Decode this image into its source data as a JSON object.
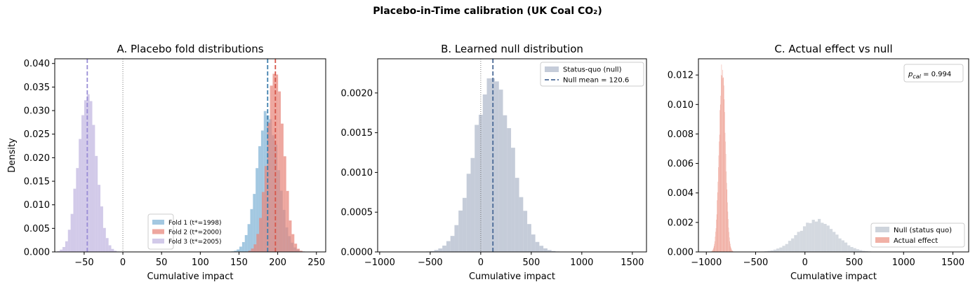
{
  "suptitle": "Placebo-in-Time calibration (UK Coal CO₂)",
  "chart_data": [
    {
      "type": "histogram",
      "title": "A. Placebo fold distributions",
      "xlabel": "Cumulative impact",
      "ylabel": "Density",
      "xlim": [
        -88,
        262
      ],
      "ylim": [
        0,
        0.041
      ],
      "xticks": [
        -50,
        0,
        50,
        100,
        150,
        200,
        250
      ],
      "yticks": [
        "0.000",
        "0.005",
        "0.010",
        "0.015",
        "0.020",
        "0.025",
        "0.030",
        "0.035",
        "0.040"
      ],
      "zero_line": 0,
      "legend_position": "lower-right",
      "series": [
        {
          "name": "Fold 1 (t*=1998)",
          "color": "#7fb3d5",
          "mean": 187,
          "sd": 13.5,
          "vline": 187,
          "vline_color": "#3f7fad"
        },
        {
          "name": "Fold 2 (t*=2000)",
          "color": "#e8857a",
          "mean": 197,
          "sd": 10.5,
          "vline": 197,
          "vline_color": "#d6564a"
        },
        {
          "name": "Fold 3 (t*=2005)",
          "color": "#c0b6e1",
          "mean": -46,
          "sd": 11.5,
          "vline": -46,
          "vline_color": "#9a8ed6"
        }
      ]
    },
    {
      "type": "histogram",
      "title": "B. Learned null distribution",
      "xlabel": "Cumulative impact",
      "ylabel": "",
      "xlim": [
        -1020,
        1640
      ],
      "ylim": [
        0,
        0.00243
      ],
      "xticks": [
        -1000,
        -500,
        0,
        500,
        1000,
        1500
      ],
      "yticks": [
        "0.0000",
        "0.0005",
        "0.0010",
        "0.0015",
        "0.0020"
      ],
      "zero_line": 0,
      "legend_position": "upper-right",
      "series": [
        {
          "name": "Status-quo (null)",
          "color": "#b7bfcf",
          "mean": 120.6,
          "sd": 185,
          "peak": 0.00222
        },
        {
          "name": "Null mean = 120.6",
          "color": "#4a6a96",
          "vline": 120.6,
          "style": "dashed"
        }
      ]
    },
    {
      "type": "histogram",
      "title": "C. Actual effect vs null",
      "xlabel": "Cumulative impact",
      "ylabel": "",
      "xlim": [
        -1080,
        1660
      ],
      "ylim": [
        0,
        0.0131
      ],
      "xticks": [
        -1000,
        -500,
        0,
        500,
        1000,
        1500
      ],
      "yticks": [
        "0.000",
        "0.002",
        "0.004",
        "0.006",
        "0.008",
        "0.010",
        "0.012"
      ],
      "annotation": "= 0.994",
      "annotation_symbol": "p",
      "annotation_subscript": "cal",
      "legend_position": "lower-right",
      "series": [
        {
          "name": "Null (status quo)",
          "color": "#c6ccd6",
          "mean": 120,
          "sd": 185,
          "peak": 0.00215
        },
        {
          "name": "Actual effect",
          "color": "#eea396",
          "mean": -838,
          "sd": 32,
          "peak": 0.0124
        }
      ]
    }
  ]
}
